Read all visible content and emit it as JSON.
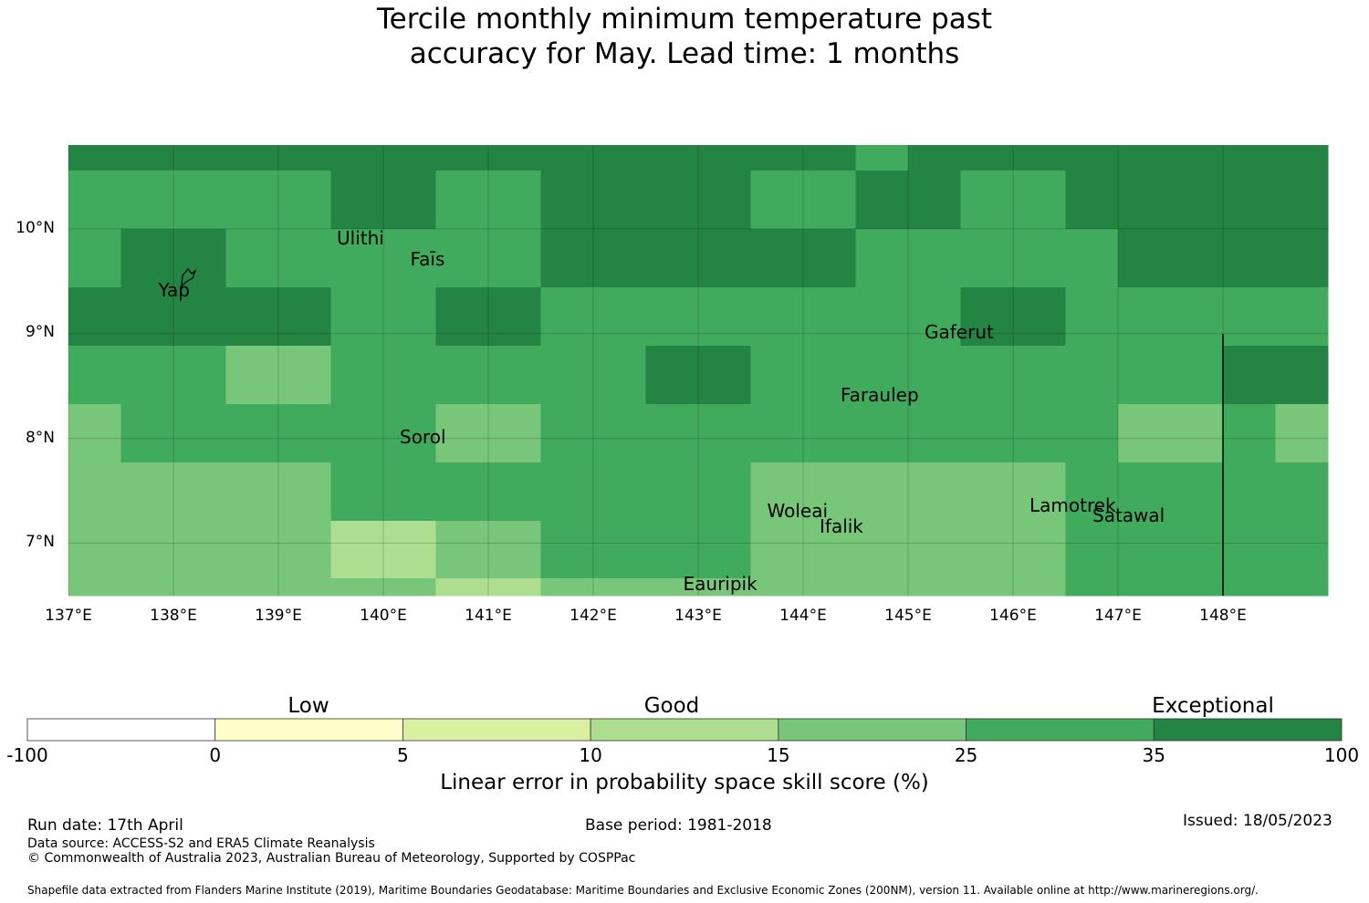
{
  "title": {
    "line1": "Tercile monthly minimum temperature past",
    "line2": "accuracy for May. Lead time: 1 months"
  },
  "map": {
    "lat_labels": [
      "10°N",
      "9°N",
      "8°N",
      "7°N"
    ],
    "lon_labels": [
      "137°E",
      "138°E",
      "139°E",
      "140°E",
      "141°E",
      "142°E",
      "143°E",
      "144°E",
      "145°E",
      "146°E",
      "147°E",
      "148°E"
    ],
    "lon_range": [
      137,
      149
    ],
    "lat_range": [
      6.5,
      10.8
    ],
    "places": [
      {
        "name": "Ulithi",
        "lon": 139.8,
        "lat": 10.0
      },
      {
        "name": "Faīs",
        "lon": 140.5,
        "lat": 9.8
      },
      {
        "name": "Yap",
        "lon": 138.1,
        "lat": 9.5
      },
      {
        "name": "Gaferut",
        "lon": 145.4,
        "lat": 9.1
      },
      {
        "name": "Faraulep",
        "lon": 144.6,
        "lat": 8.5
      },
      {
        "name": "Sorol",
        "lon": 140.4,
        "lat": 8.1
      },
      {
        "name": "Woleai",
        "lon": 143.9,
        "lat": 7.4
      },
      {
        "name": "Ifalik",
        "lon": 144.4,
        "lat": 7.25
      },
      {
        "name": "Lamotrek",
        "lon": 146.4,
        "lat": 7.45
      },
      {
        "name": "Satawal",
        "lon": 147.0,
        "lat": 7.35
      },
      {
        "name": "Eauripik",
        "lon": 143.1,
        "lat": 6.7
      }
    ],
    "cell_classes": [
      [
        6,
        6,
        6,
        6,
        6,
        6,
        6,
        6,
        6,
        6,
        6,
        6,
        6,
        6,
        6,
        5,
        6,
        6,
        6,
        6,
        6,
        6,
        6,
        6
      ],
      [
        5,
        5,
        5,
        5,
        5,
        6,
        6,
        5,
        5,
        6,
        6,
        6,
        6,
        5,
        5,
        6,
        6,
        5,
        5,
        6,
        6,
        6,
        6,
        6
      ],
      [
        5,
        6,
        6,
        5,
        5,
        5,
        5,
        5,
        5,
        6,
        6,
        6,
        6,
        6,
        6,
        5,
        5,
        5,
        5,
        5,
        6,
        6,
        6,
        6
      ],
      [
        6,
        6,
        6,
        6,
        6,
        5,
        5,
        6,
        6,
        5,
        5,
        5,
        5,
        5,
        5,
        5,
        5,
        6,
        6,
        5,
        5,
        5,
        5,
        5
      ],
      [
        5,
        5,
        5,
        4,
        4,
        5,
        5,
        5,
        5,
        5,
        5,
        6,
        6,
        5,
        5,
        5,
        5,
        5,
        5,
        5,
        5,
        5,
        6,
        6
      ],
      [
        4,
        5,
        5,
        5,
        5,
        5,
        5,
        4,
        4,
        5,
        5,
        5,
        5,
        5,
        5,
        5,
        5,
        5,
        5,
        5,
        4,
        4,
        5,
        4
      ],
      [
        4,
        4,
        4,
        4,
        4,
        5,
        5,
        5,
        5,
        5,
        5,
        5,
        5,
        4,
        4,
        4,
        4,
        4,
        4,
        5,
        5,
        5,
        5,
        5
      ],
      [
        4,
        4,
        4,
        4,
        4,
        3,
        3,
        4,
        4,
        5,
        5,
        5,
        5,
        4,
        4,
        4,
        4,
        4,
        4,
        5,
        5,
        5,
        5,
        5
      ],
      [
        4,
        4,
        4,
        4,
        4,
        4,
        4,
        3,
        3,
        4,
        4,
        4,
        4,
        4,
        4,
        4,
        4,
        4,
        4,
        5,
        5,
        5,
        5,
        5
      ]
    ]
  },
  "legend": {
    "categories": [
      "Low",
      "Good",
      "Exceptional"
    ],
    "ticks": [
      "-100",
      "0",
      "5",
      "10",
      "15",
      "25",
      "35",
      "100"
    ],
    "colors": [
      "#ffffff",
      "#ffffcc",
      "#d9f0a3",
      "#addd8e",
      "#78c679",
      "#41ab5d",
      "#238443"
    ],
    "label": "Linear error in probability space skill score (%)"
  },
  "footer": {
    "run_date": "Run date: 17th April",
    "base_period": "Base period: 1981-2018",
    "issued": "Issued: 18/05/2023",
    "data_source": "Data source: ACCESS-S2 and ERA5 Climate Reanalysis",
    "copyright": "© Commonwealth of Australia 2023, Australian Bureau of Meteorology, Supported by COSPPac",
    "shapefile": "Shapefile data extracted from Flanders Marine Institute (2019), Maritime Boundaries Geodatabase: Maritime Boundaries and Exclusive Economic Zones (200NM), version 11. Available online at http://www.marineregions.org/."
  }
}
